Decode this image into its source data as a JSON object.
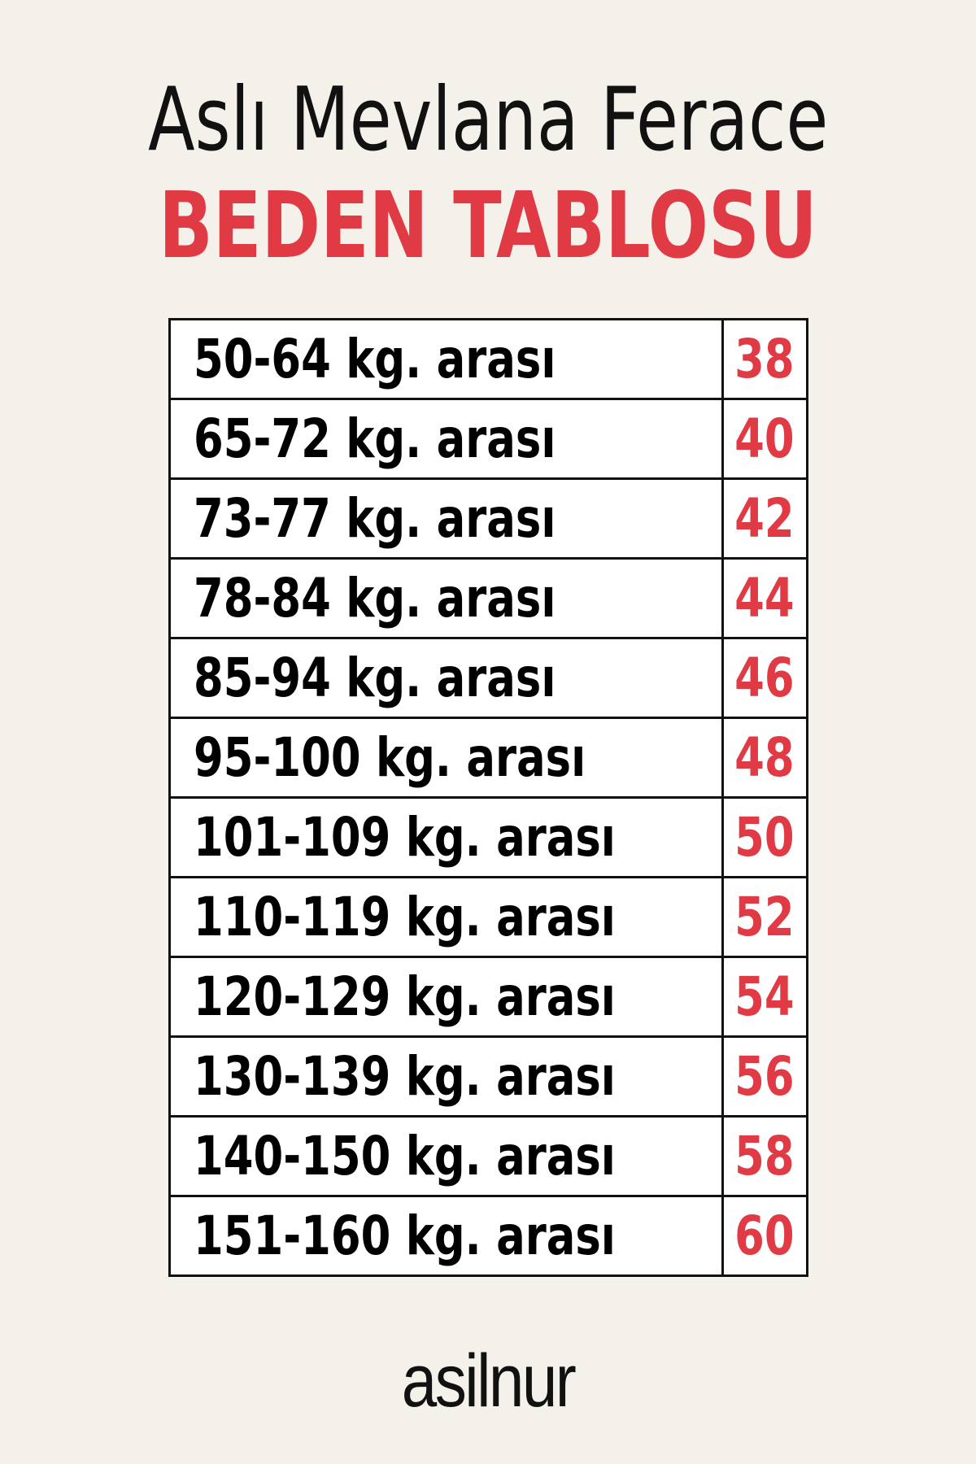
{
  "header": {
    "title": "Aslı Mevlana Ferace",
    "subtitle": "BEDEN TABLOSU"
  },
  "colors": {
    "accent": "#e03a45",
    "background": "#f4f1eb"
  },
  "size_table": [
    {
      "range": "50-64 kg. arası",
      "size": "38"
    },
    {
      "range": "65-72 kg. arası",
      "size": "40"
    },
    {
      "range": "73-77 kg. arası",
      "size": "42"
    },
    {
      "range": "78-84 kg. arası",
      "size": "44"
    },
    {
      "range": "85-94 kg. arası",
      "size": "46"
    },
    {
      "range": "95-100 kg. arası",
      "size": "48"
    },
    {
      "range": "101-109 kg. arası",
      "size": "50"
    },
    {
      "range": "110-119 kg. arası",
      "size": "52"
    },
    {
      "range": "120-129 kg. arası",
      "size": "54"
    },
    {
      "range": "130-139 kg. arası",
      "size": "56"
    },
    {
      "range": "140-150 kg. arası",
      "size": "58"
    },
    {
      "range": "151-160 kg. arası",
      "size": "60"
    }
  ],
  "brand": {
    "logo": "asilnur"
  }
}
